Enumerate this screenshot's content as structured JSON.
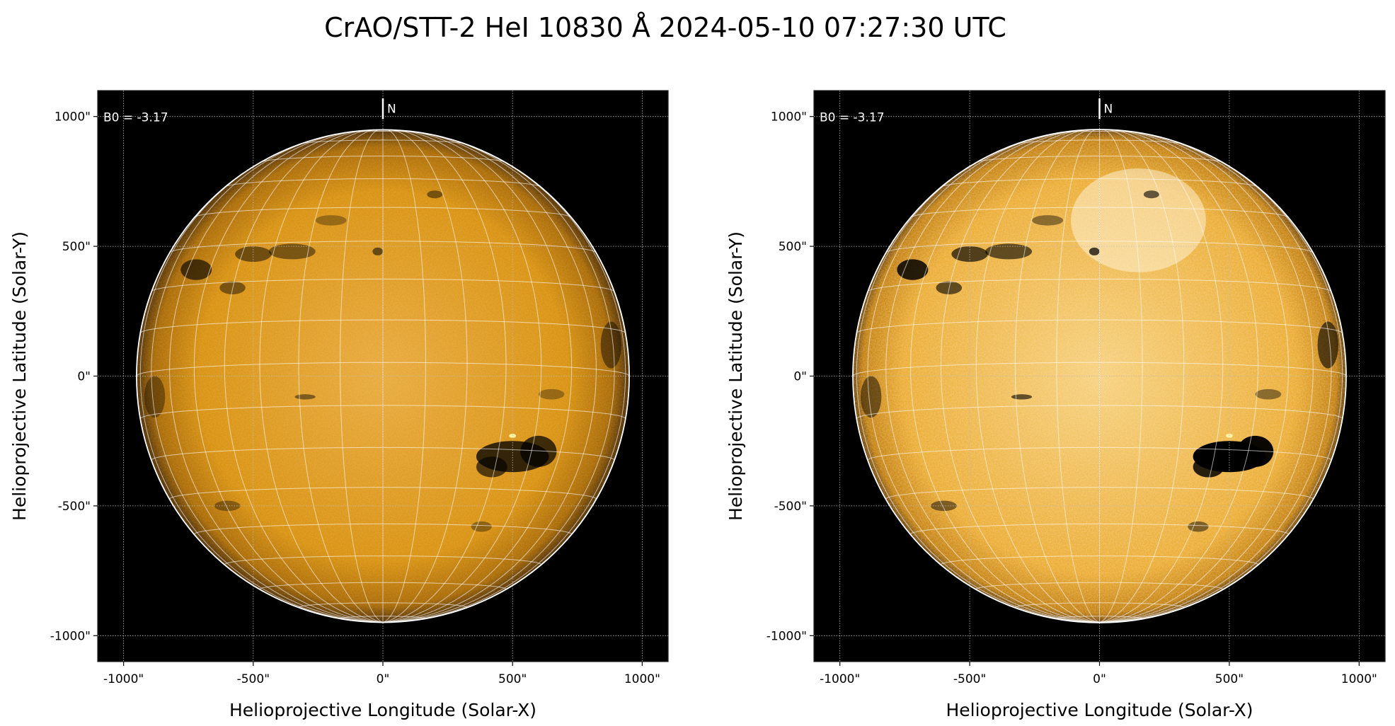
{
  "title": "CrAO/STT-2 HeI 10830 Å 2024-05-10 07:27:30 UTC",
  "colors": {
    "disk": "#e09a10",
    "disk_bright": "#f6d9a0",
    "limb": "#ffffff",
    "background": "#000000"
  },
  "chart_data": [
    {
      "type": "heatmap",
      "panel": "left",
      "title": "",
      "xlabel": "Helioprojective Longitude (Solar-X)",
      "ylabel": "Helioprojective Latitude (Solar-Y)",
      "xlim": [
        -1100,
        1100
      ],
      "ylim": [
        -1100,
        1100
      ],
      "xticks": [
        -1000,
        -500,
        0,
        500,
        1000
      ],
      "yticks": [
        -1000,
        -500,
        0,
        500,
        1000
      ],
      "xtick_labels": [
        "-1000\"",
        "-500\"",
        "0\"",
        "500\"",
        "1000\""
      ],
      "ytick_labels": [
        "-1000\"",
        "-500\"",
        "0\"",
        "500\"",
        "1000\""
      ],
      "grid": true,
      "solar_radius_arcsec": 950,
      "b0_deg": -3.17,
      "annotation": "B0 = -3.17",
      "north_marker": "N",
      "heliographic_grid_step_deg": 10,
      "contrast": "normal"
    },
    {
      "type": "heatmap",
      "panel": "right",
      "title": "",
      "xlabel": "Helioprojective Longitude (Solar-X)",
      "ylabel": "Helioprojective Latitude (Solar-Y)",
      "xlim": [
        -1100,
        1100
      ],
      "ylim": [
        -1100,
        1100
      ],
      "xticks": [
        -1000,
        -500,
        0,
        500,
        1000
      ],
      "yticks": [
        -1000,
        -500,
        0,
        500,
        1000
      ],
      "xtick_labels": [
        "-1000\"",
        "-500\"",
        "0\"",
        "500\"",
        "1000\""
      ],
      "ytick_labels": [
        "-1000\"",
        "-500\"",
        "0\"",
        "500\"",
        "1000\""
      ],
      "grid": true,
      "solar_radius_arcsec": 950,
      "b0_deg": -3.17,
      "annotation": "B0 = -3.17",
      "north_marker": "N",
      "heliographic_grid_step_deg": 10,
      "contrast": "enhanced"
    }
  ]
}
